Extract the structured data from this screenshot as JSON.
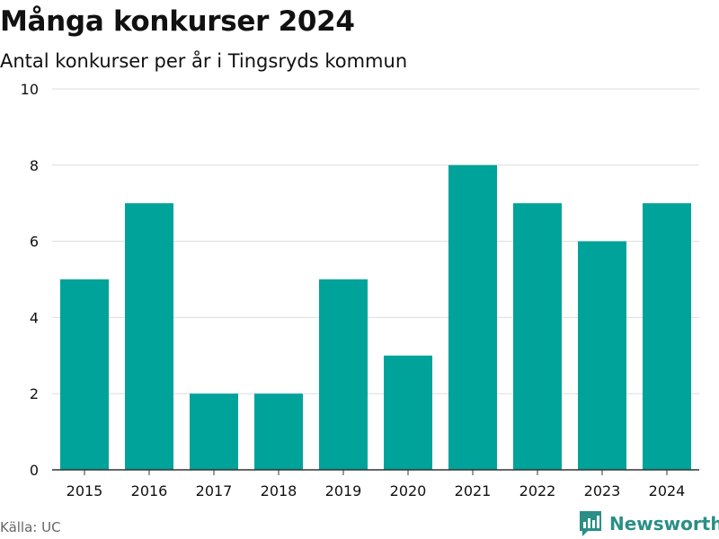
{
  "title": "Många konkurser 2024",
  "subtitle": "Antal konkurser per år i Tingsryds kommun",
  "source": "Källa: UC",
  "brand": {
    "name": "Newsworthy",
    "logo_icon": "newsworthy-chart-logo-icon",
    "color": "#2a8f86"
  },
  "colors": {
    "bar": "#00a39a",
    "grid": "#dddddd",
    "axis": "#333333",
    "text": "#111111"
  },
  "chart_data": {
    "type": "bar",
    "categories": [
      "2015",
      "2016",
      "2017",
      "2018",
      "2019",
      "2020",
      "2021",
      "2022",
      "2023",
      "2024"
    ],
    "values": [
      5,
      7,
      2,
      2,
      5,
      3,
      8,
      7,
      6,
      7
    ],
    "xlabel": "",
    "ylabel": "",
    "ylim": [
      0,
      10
    ],
    "yticks": [
      0,
      2,
      4,
      6,
      8,
      10
    ],
    "grid": true
  }
}
